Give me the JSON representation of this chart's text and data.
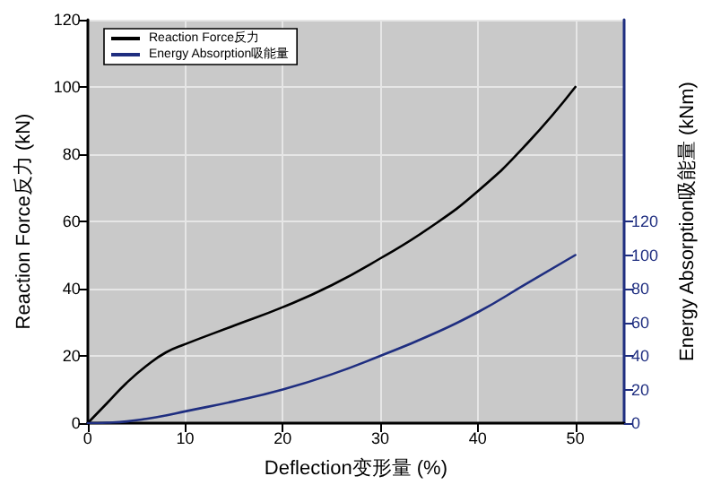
{
  "chart_data": {
    "type": "line",
    "xlabel": "Deflection变形量 (%)",
    "ylabel": "Reaction Force反力 (kN)",
    "y2label": "Energy Absorption吸能量 (kNm)",
    "x": [
      0,
      2,
      4,
      6,
      8,
      10,
      15,
      20,
      25,
      30,
      35,
      40,
      45,
      50
    ],
    "series": [
      {
        "name": "Reaction Force反力",
        "color": "#000000",
        "values": [
          0,
          6,
          12,
          17,
          21,
          23.5,
          29,
          34.5,
          41,
          49,
          58,
          69,
          83,
          100
        ]
      },
      {
        "name": "Energy Absorption吸能量",
        "color": "#1f2e80",
        "axis": "y2",
        "values": [
          0,
          0.3,
          1,
          2.5,
          4.5,
          7,
          13,
          20,
          29,
          40,
          52,
          66,
          83,
          100
        ]
      }
    ],
    "xlim": [
      0,
      55
    ],
    "xticks": [
      0,
      10,
      20,
      30,
      40,
      50
    ],
    "ylim": [
      0,
      120
    ],
    "yticks": [
      0,
      20,
      40,
      60,
      80,
      100,
      120
    ],
    "y2lim": [
      0,
      240
    ],
    "y2ticks": [
      0,
      20,
      40,
      60,
      80,
      100,
      120
    ],
    "grid": true,
    "legend": "top left",
    "marker": "none",
    "line_style": "solid"
  }
}
